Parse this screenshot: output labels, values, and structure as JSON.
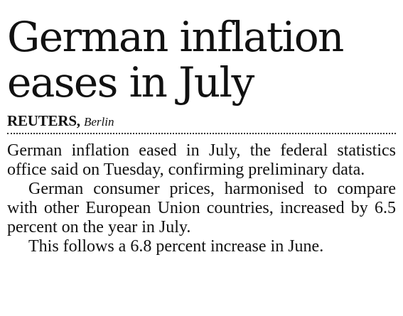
{
  "article": {
    "headline_line1": "German inflation",
    "headline_line2": "eases in July",
    "agency": "REUTERS,",
    "dateline": "Berlin",
    "paragraphs": [
      "German inflation eased in July, the federal statistics office said on Tuesday, confirming preliminary data.",
      "German consumer prices, harmonised to compare with other European Union countries, increased by 6.5 percent on the year in July.",
      "This follows a 6.8 percent increase in June."
    ]
  }
}
